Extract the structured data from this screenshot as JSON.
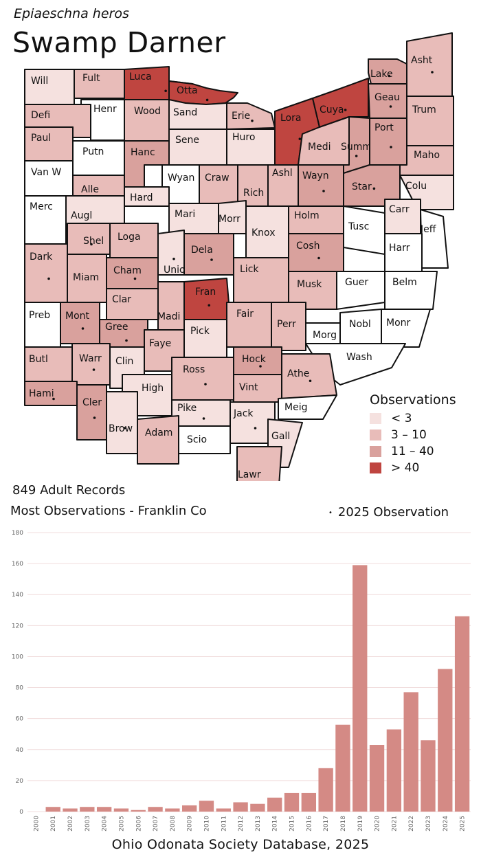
{
  "header": {
    "scientific_name": "Epiaeschna heros",
    "common_name": "Swamp Darner"
  },
  "summary": {
    "records": "849 Adult Records",
    "most": "Most Observations - Franklin Co",
    "obs_2025_label": "2025  Observation",
    "obs_2025_marker": "•"
  },
  "legend": {
    "title": "Observations",
    "items": [
      {
        "label": "< 3",
        "color": "#f5e1df"
      },
      {
        "label": "3 – 10",
        "color": "#e8bcb9"
      },
      {
        "label": "11 – 40",
        "color": "#d9a19d"
      },
      {
        "label": "> 40",
        "color": "#bf4540"
      }
    ]
  },
  "counties": [
    {
      "name": "Will",
      "bin": 0,
      "dot": false
    },
    {
      "name": "Fult",
      "bin": 1,
      "dot": false
    },
    {
      "name": "Luca",
      "bin": 3,
      "dot": true
    },
    {
      "name": "Otta",
      "bin": 3,
      "dot": true
    },
    {
      "name": "Lake",
      "bin": 2,
      "dot": true
    },
    {
      "name": "Asht",
      "bin": 1,
      "dot": true
    },
    {
      "name": "Defi",
      "bin": 1,
      "dot": false
    },
    {
      "name": "Henr",
      "bin": -1,
      "dot": false
    },
    {
      "name": "Wood",
      "bin": 1,
      "dot": false
    },
    {
      "name": "Sand",
      "bin": 0,
      "dot": false
    },
    {
      "name": "Erie",
      "bin": 1,
      "dot": true
    },
    {
      "name": "Lora",
      "bin": 3,
      "dot": true
    },
    {
      "name": "Cuya",
      "bin": 3,
      "dot": true
    },
    {
      "name": "Geau",
      "bin": 2,
      "dot": true
    },
    {
      "name": "Trum",
      "bin": 1,
      "dot": false
    },
    {
      "name": "Paul",
      "bin": 1,
      "dot": false
    },
    {
      "name": "Putn",
      "bin": -1,
      "dot": false
    },
    {
      "name": "Hanc",
      "bin": 2,
      "dot": false
    },
    {
      "name": "Sene",
      "bin": 0,
      "dot": false
    },
    {
      "name": "Huro",
      "bin": 0,
      "dot": false
    },
    {
      "name": "Medi",
      "bin": 1,
      "dot": false
    },
    {
      "name": "Summ",
      "bin": 2,
      "dot": true
    },
    {
      "name": "Port",
      "bin": 2,
      "dot": true
    },
    {
      "name": "Maho",
      "bin": 1,
      "dot": false
    },
    {
      "name": "Van W",
      "bin": -1,
      "dot": false
    },
    {
      "name": "Alle",
      "bin": 1,
      "dot": false
    },
    {
      "name": "Wyan",
      "bin": -1,
      "dot": false
    },
    {
      "name": "Craw",
      "bin": 1,
      "dot": false
    },
    {
      "name": "Rich",
      "bin": 1,
      "dot": false
    },
    {
      "name": "Ashl",
      "bin": 1,
      "dot": false
    },
    {
      "name": "Wayn",
      "bin": 2,
      "dot": true
    },
    {
      "name": "Star",
      "bin": 2,
      "dot": true
    },
    {
      "name": "Colu",
      "bin": 0,
      "dot": false
    },
    {
      "name": "Merc",
      "bin": -1,
      "dot": false
    },
    {
      "name": "Augl",
      "bin": 0,
      "dot": false
    },
    {
      "name": "Hard",
      "bin": 0,
      "dot": false
    },
    {
      "name": "Mari",
      "bin": 0,
      "dot": false
    },
    {
      "name": "Morr",
      "bin": 0,
      "dot": false
    },
    {
      "name": "Knox",
      "bin": 0,
      "dot": false
    },
    {
      "name": "Holm",
      "bin": 1,
      "dot": false
    },
    {
      "name": "Tusc",
      "bin": -1,
      "dot": false
    },
    {
      "name": "Carr",
      "bin": 0,
      "dot": false
    },
    {
      "name": "Jeff",
      "bin": -1,
      "dot": false
    },
    {
      "name": "Shel",
      "bin": 1,
      "dot": true
    },
    {
      "name": "Loga",
      "bin": 1,
      "dot": false
    },
    {
      "name": "Unio",
      "bin": 0,
      "dot": true
    },
    {
      "name": "Dela",
      "bin": 2,
      "dot": true
    },
    {
      "name": "Lick",
      "bin": 1,
      "dot": false
    },
    {
      "name": "Cosh",
      "bin": 2,
      "dot": true
    },
    {
      "name": "Harr",
      "bin": -1,
      "dot": false
    },
    {
      "name": "Dark",
      "bin": 1,
      "dot": true
    },
    {
      "name": "Miam",
      "bin": 1,
      "dot": false
    },
    {
      "name": "Cham",
      "bin": 2,
      "dot": true
    },
    {
      "name": "Fran",
      "bin": 3,
      "dot": true
    },
    {
      "name": "Musk",
      "bin": 1,
      "dot": false
    },
    {
      "name": "Guer",
      "bin": -1,
      "dot": false
    },
    {
      "name": "Belm",
      "bin": -1,
      "dot": false
    },
    {
      "name": "Clar",
      "bin": 1,
      "dot": false
    },
    {
      "name": "Madi",
      "bin": 1,
      "dot": false
    },
    {
      "name": "Preb",
      "bin": -1,
      "dot": false
    },
    {
      "name": "Mont",
      "bin": 2,
      "dot": true
    },
    {
      "name": "Gree",
      "bin": 2,
      "dot": true
    },
    {
      "name": "Fair",
      "bin": 1,
      "dot": false
    },
    {
      "name": "Perr",
      "bin": 1,
      "dot": false
    },
    {
      "name": "Nobl",
      "bin": -1,
      "dot": false
    },
    {
      "name": "Monr",
      "bin": -1,
      "dot": false
    },
    {
      "name": "Pick",
      "bin": 0,
      "dot": false
    },
    {
      "name": "Faye",
      "bin": 1,
      "dot": false
    },
    {
      "name": "Morg",
      "bin": -1,
      "dot": false
    },
    {
      "name": "Butl",
      "bin": 1,
      "dot": false
    },
    {
      "name": "Warr",
      "bin": 1,
      "dot": true
    },
    {
      "name": "Clin",
      "bin": 0,
      "dot": false
    },
    {
      "name": "Hock",
      "bin": 2,
      "dot": true
    },
    {
      "name": "Wash",
      "bin": -1,
      "dot": false
    },
    {
      "name": "Ross",
      "bin": 1,
      "dot": true
    },
    {
      "name": "Athe",
      "bin": 1,
      "dot": true
    },
    {
      "name": "Vint",
      "bin": 1,
      "dot": false
    },
    {
      "name": "Hami",
      "bin": 2,
      "dot": true
    },
    {
      "name": "High",
      "bin": 0,
      "dot": false
    },
    {
      "name": "Cler",
      "bin": 2,
      "dot": true
    },
    {
      "name": "Pike",
      "bin": 0,
      "dot": true
    },
    {
      "name": "Jack",
      "bin": 0,
      "dot": true
    },
    {
      "name": "Meig",
      "bin": -1,
      "dot": false
    },
    {
      "name": "Brow",
      "bin": 0,
      "dot": true
    },
    {
      "name": "Adam",
      "bin": 1,
      "dot": false
    },
    {
      "name": "Scio",
      "bin": -1,
      "dot": false
    },
    {
      "name": "Gall",
      "bin": 0,
      "dot": false
    },
    {
      "name": "Lawr",
      "bin": 1,
      "dot": false
    }
  ],
  "chart_data": {
    "type": "bar",
    "categories": [
      "2000",
      "2001",
      "2002",
      "2003",
      "2004",
      "2005",
      "2006",
      "2007",
      "2008",
      "2009",
      "2010",
      "2011",
      "2012",
      "2013",
      "2014",
      "2015",
      "2016",
      "2017",
      "2018",
      "2019",
      "2020",
      "2021",
      "2022",
      "2023",
      "2024",
      "2025"
    ],
    "values": [
      0,
      3,
      2,
      3,
      3,
      2,
      1,
      3,
      2,
      4,
      7,
      2,
      6,
      5,
      9,
      12,
      12,
      28,
      56,
      159,
      43,
      53,
      77,
      46,
      92,
      126
    ],
    "ylim": [
      0,
      180
    ],
    "yticks": [
      0,
      20,
      40,
      60,
      80,
      100,
      120,
      140,
      160,
      180
    ],
    "bar_color": "#d48a85",
    "grid": true,
    "title": "",
    "xlabel": "",
    "ylabel": ""
  },
  "footer": "Ohio Odonata Society Database, 2025"
}
